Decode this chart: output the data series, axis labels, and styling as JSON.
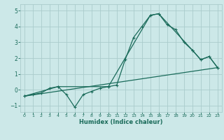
{
  "xlabel": "Humidex (Indice chaleur)",
  "bg_color": "#cce8e8",
  "grid_color": "#aacccc",
  "line_color": "#1a6b5a",
  "xlim": [
    -0.5,
    23.5
  ],
  "ylim": [
    -1.4,
    5.4
  ],
  "xticks": [
    0,
    1,
    2,
    3,
    4,
    5,
    6,
    7,
    8,
    9,
    10,
    11,
    12,
    13,
    14,
    15,
    16,
    17,
    18,
    19,
    20,
    21,
    22,
    23
  ],
  "yticks": [
    -1,
    0,
    1,
    2,
    3,
    4,
    5
  ],
  "line1_x": [
    0,
    1,
    2,
    3,
    4,
    5,
    6,
    7,
    8,
    9,
    10,
    11,
    12,
    13,
    14,
    15,
    16,
    17,
    18,
    19,
    20,
    21,
    22,
    23
  ],
  "line1_y": [
    -0.4,
    -0.3,
    -0.2,
    0.1,
    0.2,
    -0.3,
    -1.1,
    -0.3,
    -0.1,
    0.1,
    0.2,
    0.3,
    1.9,
    3.3,
    4.0,
    4.7,
    4.8,
    4.1,
    3.8,
    3.0,
    2.5,
    1.9,
    2.1,
    1.4
  ],
  "line2_x": [
    0,
    4,
    10,
    15,
    16,
    20,
    21,
    22,
    23
  ],
  "line2_y": [
    -0.4,
    0.2,
    0.2,
    4.7,
    4.8,
    2.5,
    1.9,
    2.1,
    1.4
  ],
  "line3_x": [
    0,
    23
  ],
  "line3_y": [
    -0.4,
    1.4
  ]
}
